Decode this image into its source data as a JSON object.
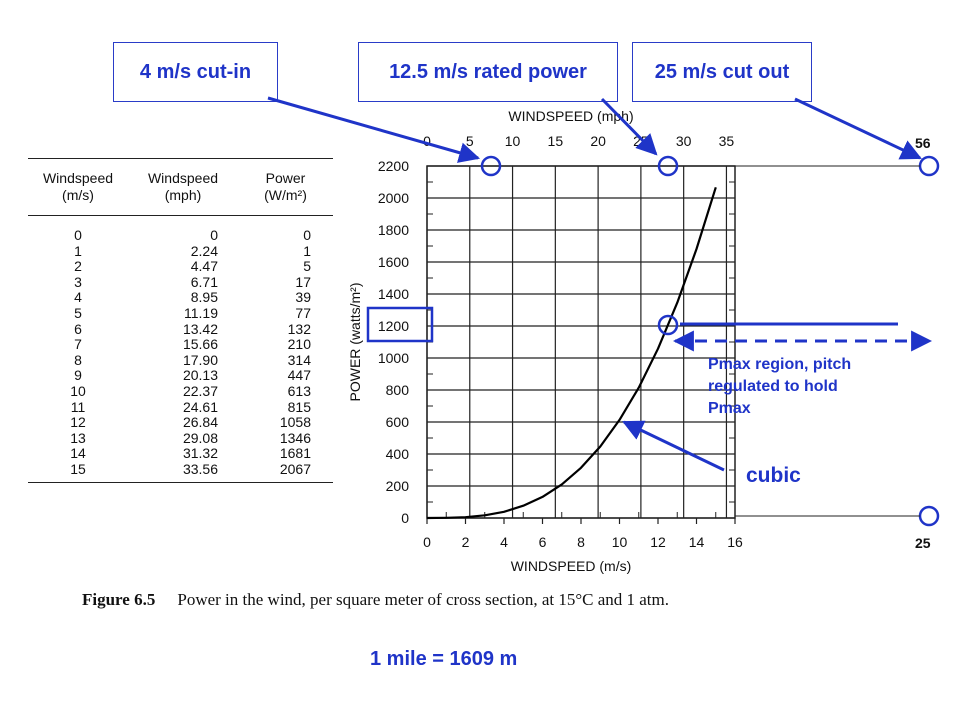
{
  "callouts": {
    "cut_in": "4 m/s cut-in",
    "rated": "12.5 m/s rated power",
    "cut_out": "25 m/s cut out"
  },
  "table": {
    "headers": [
      [
        "Windspeed",
        "(m/s)"
      ],
      [
        "Windspeed",
        "(mph)"
      ],
      [
        "Power",
        "(W/m²)"
      ]
    ],
    "rows": [
      [
        "0",
        "0",
        "0"
      ],
      [
        "1",
        "2.24",
        "1"
      ],
      [
        "2",
        "4.47",
        "5"
      ],
      [
        "3",
        "6.71",
        "17"
      ],
      [
        "4",
        "8.95",
        "39"
      ],
      [
        "5",
        "11.19",
        "77"
      ],
      [
        "6",
        "13.42",
        "132"
      ],
      [
        "7",
        "15.66",
        "210"
      ],
      [
        "8",
        "17.90",
        "314"
      ],
      [
        "9",
        "20.13",
        "447"
      ],
      [
        "10",
        "22.37",
        "613"
      ],
      [
        "11",
        "24.61",
        "815"
      ],
      [
        "12",
        "26.84",
        "1058"
      ],
      [
        "13",
        "29.08",
        "1346"
      ],
      [
        "14",
        "31.32",
        "1681"
      ],
      [
        "15",
        "33.56",
        "2067"
      ]
    ]
  },
  "chart_data": {
    "type": "line",
    "xlabel": "WINDSPEED (m/s)",
    "x2label": "WINDSPEED (mph)",
    "ylabel": "POWER (watts/m²)",
    "xlim": [
      0,
      16
    ],
    "ylim": [
      0,
      2200
    ],
    "x2lim": [
      0,
      36
    ],
    "xticks": [
      "0",
      "2",
      "4",
      "6",
      "8",
      "10",
      "12",
      "14",
      "16"
    ],
    "x2ticks": [
      "0",
      "5",
      "10",
      "15",
      "20",
      "25",
      "30",
      "35"
    ],
    "yticks": [
      "0",
      "200",
      "400",
      "600",
      "800",
      "1000",
      "1200",
      "1400",
      "1600",
      "1800",
      "2000",
      "2200"
    ],
    "x": [
      0,
      1,
      2,
      3,
      4,
      5,
      6,
      7,
      8,
      9,
      10,
      11,
      12,
      13,
      14,
      15
    ],
    "y": [
      0,
      1,
      5,
      17,
      39,
      77,
      132,
      210,
      314,
      447,
      613,
      815,
      1058,
      1346,
      1681,
      2067
    ],
    "grid": true,
    "annotations": {
      "label_56": "56",
      "label_25": "25",
      "pmax": [
        "Pmax region, pitch",
        "regulated to hold",
        "Pmax"
      ],
      "cubic": "cubic"
    },
    "annotation_color": "#1f34c8"
  },
  "caption": {
    "label": "Figure 6.5",
    "text": "Power in the wind, per square meter of cross section, at 15°C and 1 atm."
  },
  "note": "1 mile = 1609 m"
}
